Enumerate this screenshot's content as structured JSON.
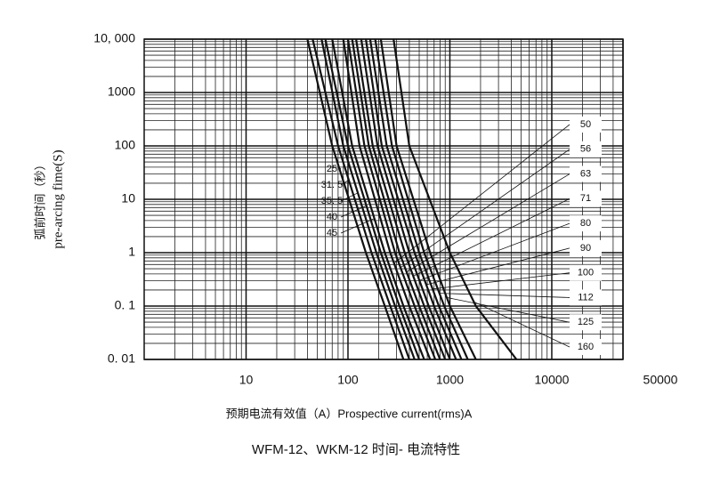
{
  "chart_data": {
    "type": "line",
    "ylabel": [
      "弧前时间（秒）",
      "pre-arcing fime(S)"
    ],
    "xlabel": "预期电流有效值（A）Prospective current(rms)A",
    "caption": "WFM-12、WKM-12 时间- 电流特性",
    "log_x": true,
    "log_y": true,
    "grid": true,
    "minor_grid": true,
    "color": "#111111",
    "xlim": [
      1,
      50000
    ],
    "xticks": [
      10,
      100,
      1000,
      10000,
      50000
    ],
    "ylim": [
      0.01,
      10000
    ],
    "yticks": [
      {
        "value": 10000,
        "label": "10, 000"
      },
      1000,
      100,
      10,
      1,
      {
        "value": 0.1,
        "label": "0. 1"
      },
      {
        "value": 0.01,
        "label": "0. 01"
      }
    ],
    "series": [
      {
        "name": "25",
        "x": [
          40,
          70,
          150,
          230,
          350
        ],
        "values": [
          10000,
          100,
          1,
          0.1,
          0.01
        ]
      },
      {
        "name": "31. 5",
        "x": [
          45,
          80,
          170,
          260,
          400
        ],
        "values": [
          10000,
          100,
          1,
          0.1,
          0.01
        ]
      },
      {
        "name": "35. 5",
        "x": [
          55,
          90,
          190,
          290,
          450
        ],
        "values": [
          10000,
          100,
          1,
          0.1,
          0.01
        ]
      },
      {
        "name": "40",
        "x": [
          60,
          100,
          210,
          320,
          500
        ],
        "values": [
          10000,
          100,
          1,
          0.1,
          0.01
        ]
      },
      {
        "name": "45",
        "x": [
          70,
          110,
          230,
          350,
          560
        ],
        "values": [
          10000,
          100,
          1,
          0.1,
          0.01
        ]
      },
      {
        "name": "50",
        "x": [
          90,
          130,
          260,
          400,
          640
        ],
        "values": [
          10000,
          100,
          1,
          0.1,
          0.01
        ]
      },
      {
        "name": "56",
        "x": [
          100,
          145,
          290,
          450,
          720
        ],
        "values": [
          10000,
          100,
          1,
          0.1,
          0.01
        ]
      },
      {
        "name": "63",
        "x": [
          110,
          160,
          320,
          500,
          800
        ],
        "values": [
          10000,
          100,
          1,
          0.1,
          0.01
        ]
      },
      {
        "name": "71",
        "x": [
          120,
          175,
          360,
          560,
          900
        ],
        "values": [
          10000,
          100,
          1,
          0.1,
          0.01
        ]
      },
      {
        "name": "80",
        "x": [
          135,
          195,
          400,
          620,
          1000
        ],
        "values": [
          10000,
          100,
          1,
          0.1,
          0.01
        ]
      },
      {
        "name": "90",
        "x": [
          150,
          215,
          450,
          700,
          1150
        ],
        "values": [
          10000,
          100,
          1,
          0.1,
          0.01
        ]
      },
      {
        "name": "100",
        "x": [
          165,
          240,
          500,
          780,
          1300
        ],
        "values": [
          10000,
          100,
          1,
          0.1,
          0.01
        ]
      },
      {
        "name": "112",
        "x": [
          185,
          270,
          560,
          880,
          1500
        ],
        "values": [
          10000,
          100,
          1,
          0.1,
          0.01
        ]
      },
      {
        "name": "125",
        "x": [
          210,
          300,
          640,
          1000,
          1800
        ],
        "values": [
          10000,
          100,
          1,
          0.1,
          0.01
        ]
      },
      {
        "name": "160",
        "x": [
          280,
          400,
          1000,
          1800,
          4500
        ],
        "values": [
          10000,
          100,
          1,
          0.1,
          0.01
        ]
      }
    ]
  }
}
